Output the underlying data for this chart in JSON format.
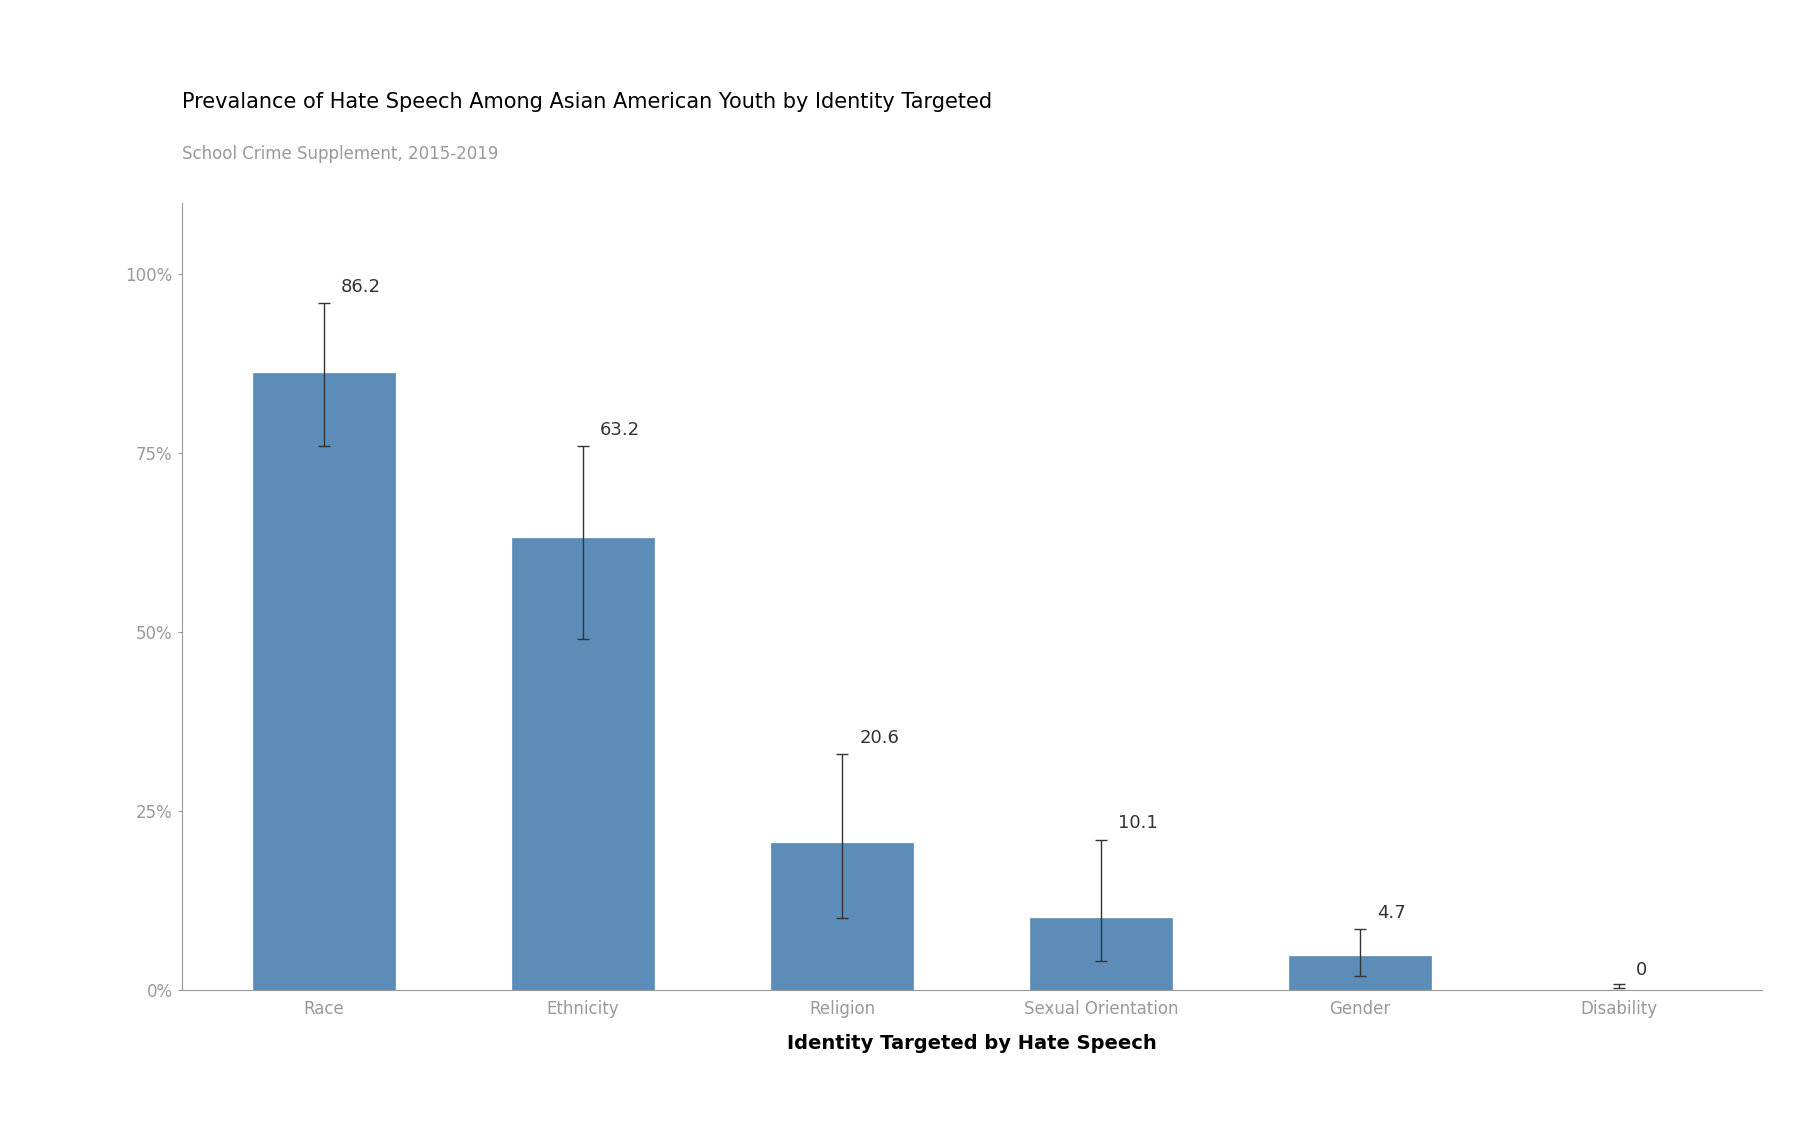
{
  "title": "Prevalance of Hate Speech Among Asian American Youth by Identity Targeted",
  "subtitle": "School Crime Supplement, 2015-2019",
  "xlabel": "Identity Targeted by Hate Speech",
  "categories": [
    "Race",
    "Ethnicity",
    "Religion",
    "Sexual Orientation",
    "Gender",
    "Disability"
  ],
  "values": [
    86.2,
    63.2,
    20.6,
    10.1,
    4.7,
    0
  ],
  "error_upper": [
    96.0,
    76.0,
    33.0,
    21.0,
    8.5,
    0.5
  ],
  "error_lower": [
    76.0,
    49.0,
    10.0,
    4.0,
    2.0,
    0
  ],
  "bar_color": "#5b8db8",
  "background_color": "#ffffff",
  "title_fontsize": 15,
  "subtitle_fontsize": 12,
  "label_fontsize": 14,
  "tick_fontsize": 12,
  "value_fontsize": 13,
  "axis_color": "#999999",
  "text_color": "#333333",
  "ylim": [
    0,
    110
  ],
  "yticks": [
    0,
    25,
    50,
    75,
    100
  ],
  "ytick_labels": [
    "0%",
    "25%",
    "50%",
    "75%",
    "100%"
  ]
}
